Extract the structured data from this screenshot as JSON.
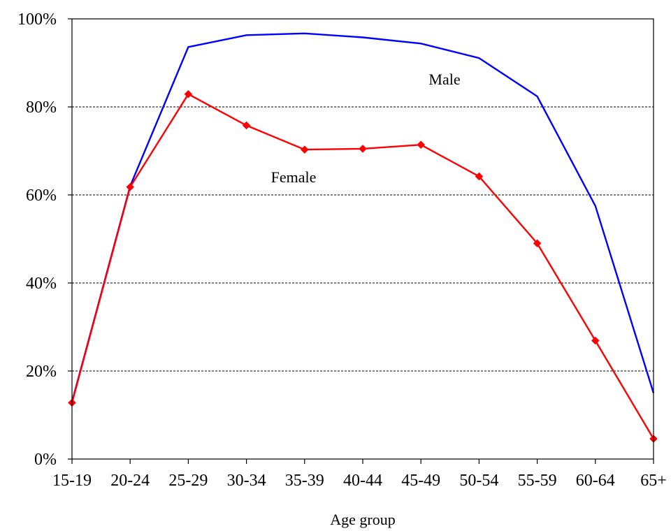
{
  "chart_data": {
    "type": "line",
    "title": "",
    "xlabel": "Age group",
    "ylabel": "",
    "categories": [
      "15-19",
      "20-24",
      "25-29",
      "30-34",
      "35-39",
      "40-44",
      "45-49",
      "50-54",
      "55-59",
      "60-64",
      "65+"
    ],
    "y_ticks": [
      "0%",
      "20%",
      "40%",
      "60%",
      "80%",
      "100%"
    ],
    "ylim": [
      0,
      100
    ],
    "y_unit": "%",
    "grid": "horizontal dashed at 20, 40, 60, 80",
    "legend": "none",
    "series": [
      {
        "name": "Male",
        "color": "#0000ff",
        "marker": "none",
        "values": [
          13,
          62,
          93.6,
          96.3,
          96.7,
          95.8,
          94.4,
          91.1,
          82.4,
          57.5,
          15
        ]
      },
      {
        "name": "Female",
        "color": "#ff0000",
        "marker": "diamond",
        "values": [
          12.8,
          61.8,
          82.9,
          75.8,
          70.3,
          70.5,
          71.4,
          64.2,
          49,
          26.9,
          4.6
        ]
      }
    ]
  }
}
